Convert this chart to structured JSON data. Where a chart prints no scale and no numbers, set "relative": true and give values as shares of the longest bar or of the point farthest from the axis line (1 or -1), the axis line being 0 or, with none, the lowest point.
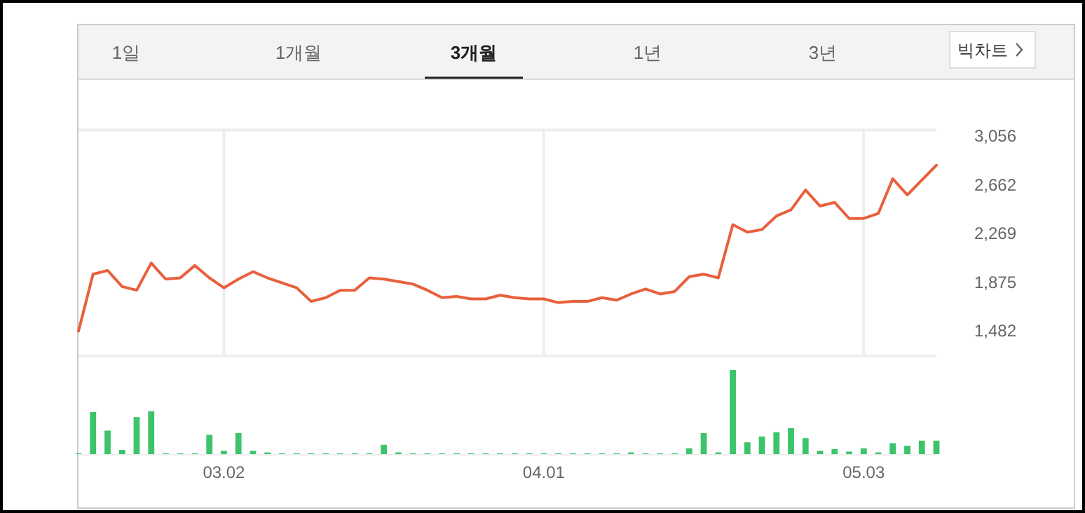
{
  "chart_data": [
    {
      "type": "line",
      "annotations": [
        "1일",
        "1개월",
        "3개월",
        "1년",
        "3년",
        "빅차트"
      ],
      "categories": [
        null,
        null,
        null,
        null,
        null,
        null,
        null,
        null,
        null,
        null,
        "03.02",
        null,
        null,
        null,
        null,
        null,
        null,
        null,
        null,
        null,
        null,
        null,
        null,
        null,
        null,
        null,
        null,
        null,
        null,
        null,
        null,
        null,
        "04.01",
        null,
        null,
        null,
        null,
        null,
        null,
        null,
        null,
        null,
        null,
        null,
        null,
        null,
        null,
        null,
        null,
        null,
        null,
        null,
        null,
        null,
        "05.03",
        null,
        null,
        null,
        null,
        null
      ],
      "series": [
        {
          "color": "#e8603c",
          "values": [
            1480,
            1940,
            1970,
            1840,
            1810,
            2030,
            1900,
            1910,
            2010,
            1910,
            1830,
            1900,
            1960,
            1910,
            1870,
            1830,
            1720,
            1750,
            1810,
            1810,
            1910,
            1900,
            1880,
            1860,
            1810,
            1750,
            1760,
            1740,
            1740,
            1770,
            1750,
            1740,
            1740,
            1710,
            1720,
            1720,
            1750,
            1730,
            1780,
            1820,
            1780,
            1800,
            1920,
            1940,
            1910,
            2340,
            2280,
            2300,
            2410,
            2460,
            2620,
            2490,
            2520,
            2390,
            2390,
            2430,
            2710,
            2580,
            2700,
            2820
          ]
        }
      ],
      "ylim": [
        1279,
        3105
      ],
      "yticks": [
        {
          "value": 1482,
          "label": "1,482"
        },
        {
          "value": 1875,
          "label": "1,875"
        },
        {
          "value": 2269,
          "label": "2,269"
        },
        {
          "value": 2662,
          "label": "2,662"
        },
        {
          "value": 3056,
          "label": "3,056"
        }
      ],
      "tick_labels": "y",
      "grid": "x"
    },
    {
      "type": "bar",
      "relative": true,
      "categories": [
        null,
        null,
        null,
        null,
        null,
        null,
        null,
        null,
        null,
        null,
        "03.02",
        null,
        null,
        null,
        null,
        null,
        null,
        null,
        null,
        null,
        null,
        null,
        null,
        null,
        null,
        null,
        null,
        null,
        null,
        null,
        null,
        null,
        "04.01",
        null,
        null,
        null,
        null,
        null,
        null,
        null,
        null,
        null,
        null,
        null,
        null,
        null,
        null,
        null,
        null,
        null,
        null,
        null,
        null,
        null,
        "05.03",
        null,
        null,
        null,
        null,
        null
      ],
      "series": [
        {
          "color": "#3dc46a",
          "values": [
            0.01,
            0.5,
            0.28,
            0.05,
            0.44,
            0.51,
            0.01,
            0.01,
            0.01,
            0.23,
            0.04,
            0.25,
            0.04,
            0.02,
            0.01,
            0.01,
            0.01,
            0.01,
            0.01,
            0.01,
            0.01,
            0.11,
            0.02,
            0.01,
            0.01,
            0.01,
            0.01,
            0.01,
            0.01,
            0.01,
            0.01,
            0.01,
            0.01,
            0.01,
            0.01,
            0.01,
            0.01,
            0.01,
            0.02,
            0.01,
            0.01,
            0.01,
            0.07,
            0.25,
            0.02,
            1,
            0.14,
            0.21,
            0.26,
            0.31,
            0.19,
            0.04,
            0.06,
            0.03,
            0.07,
            0.02,
            0.13,
            0.1,
            0.16,
            0.16
          ]
        }
      ],
      "tick_labels": "x"
    }
  ]
}
